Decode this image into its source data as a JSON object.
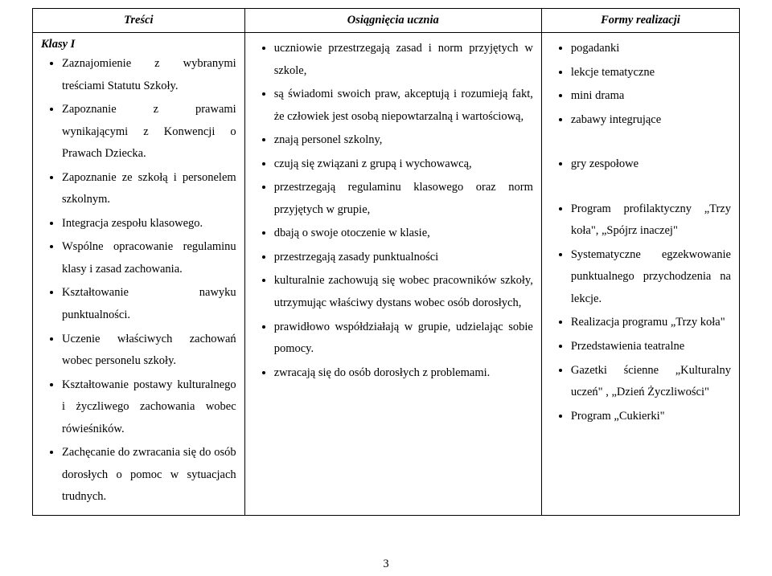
{
  "header": {
    "col1": "Treści",
    "col2": "Osiągnięcia ucznia",
    "col3": "Formy realizacji"
  },
  "sub_header": "Klasy I",
  "col1_items": [
    "Zaznajomienie z wybranymi treściami Statutu Szkoły.",
    "Zapoznanie z prawami wynikającymi z Konwencji o Prawach Dziecka.",
    "Zapoznanie ze szkołą i personelem szkolnym.",
    "Integracja zespołu klasowego.",
    "Wspólne opracowanie regulaminu klasy i zasad zachowania.",
    "Kształtowanie nawyku punktualności.",
    "Uczenie właściwych zachowań wobec personelu szkoły.",
    "Kształtowanie postawy kulturalnego i życzliwego zachowania wobec rówieśników.",
    "Zachęcanie do zwracania się do osób dorosłych o pomoc w sytuacjach trudnych."
  ],
  "col2_items": [
    "uczniowie przestrzegają zasad i norm przyjętych w szkole,",
    "są świadomi swoich praw, akceptują i rozumieją fakt, że człowiek jest osobą niepowtarzalną i wartościową,",
    "znają personel szkolny,",
    "czują się związani z grupą i wychowawcą,",
    "przestrzegają regulaminu klasowego oraz norm przyjętych w grupie,",
    "dbają o swoje otoczenie w klasie,",
    "przestrzegają zasady punktualności",
    "kulturalnie zachowują się wobec pracowników szkoły, utrzymując właściwy dystans wobec osób dorosłych,",
    "prawidłowo współdziałają w grupie, udzielając sobie pomocy.",
    "zwracają się do osób dorosłych z problemami."
  ],
  "col3_items": [
    "pogadanki",
    "lekcje tematyczne",
    "mini drama",
    "zabawy integrujące",
    "gry zespołowe",
    "Program profilaktyczny „Trzy koła\", „Spójrz inaczej\"",
    "Systematyczne egzekwowanie punktualnego przychodzenia na lekcje.",
    "Realizacja programu „Trzy koła\"",
    "Przedstawienia teatralne",
    "Gazetki ścienne „Kulturalny uczeń\" , „Dzień Życzliwości\"",
    "Program „Cukierki\""
  ],
  "col3_gap_after": {
    "3": true,
    "4": true
  },
  "page_number": "3",
  "colors": {
    "background": "#ffffff",
    "text": "#000000",
    "border": "#000000"
  },
  "typography": {
    "font_family": "Times New Roman",
    "base_fontsize_pt": 11,
    "header_style": "bold-italic"
  }
}
